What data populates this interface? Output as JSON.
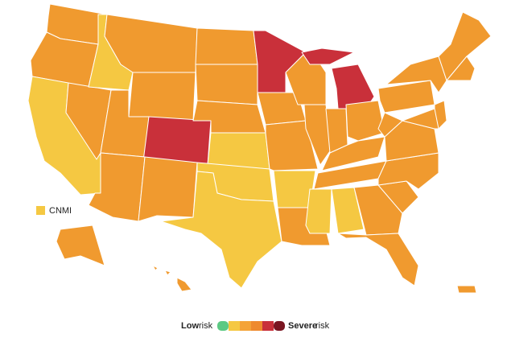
{
  "territory_legend": {
    "label": "CNMI"
  },
  "risk_legend": {
    "low": "Low",
    "low_unit": "risk",
    "severe": "Severe",
    "severe_unit": "risk",
    "colors": [
      "#5cc983",
      "#f5c842",
      "#f4a338",
      "#ee8a2e",
      "#c9303a",
      "#7a1521"
    ]
  }
}
